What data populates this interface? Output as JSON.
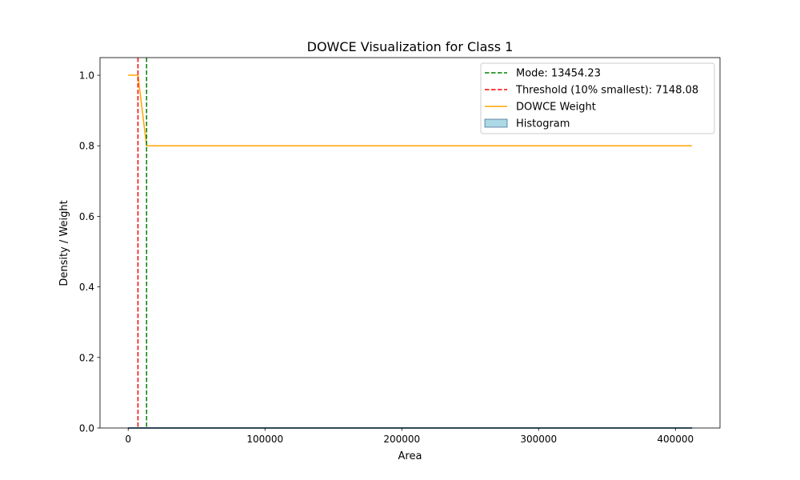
{
  "chart_data": {
    "type": "line",
    "title": "DOWCE Visualization for Class 1",
    "xlabel": "Area",
    "ylabel": "Density / Weight",
    "xlim": [
      -20600,
      432600
    ],
    "ylim": [
      0.0,
      1.05
    ],
    "xticks": [
      0,
      100000,
      200000,
      300000,
      400000
    ],
    "yticks": [
      0.0,
      0.2,
      0.4,
      0.6,
      0.8,
      1.0
    ],
    "xtick_labels": [
      "0",
      "100000",
      "200000",
      "300000",
      "400000"
    ],
    "ytick_labels": [
      "0.0",
      "0.2",
      "0.4",
      "0.6",
      "0.8",
      "1.0"
    ],
    "grid": false,
    "legend_position": "top-right",
    "series": [
      {
        "name": "DOWCE Weight",
        "kind": "line",
        "color": "#ffa500",
        "x": [
          0,
          7148.08,
          13454.23,
          412000
        ],
        "y": [
          1.0,
          1.0,
          0.8,
          0.8
        ]
      },
      {
        "name": "Mode: 13454.23",
        "kind": "vline",
        "color": "#008000",
        "dash": true,
        "x": 13454.23
      },
      {
        "name": "Threshold (10% smallest): 7148.08",
        "kind": "vline",
        "color": "#ff0000",
        "dash": true,
        "x": 7148.08
      },
      {
        "name": "Histogram",
        "kind": "histogram",
        "color": "#add8e6",
        "edgecolor": "#1f4e6e",
        "x_range": [
          0,
          412000
        ],
        "density": 0.0
      }
    ]
  }
}
